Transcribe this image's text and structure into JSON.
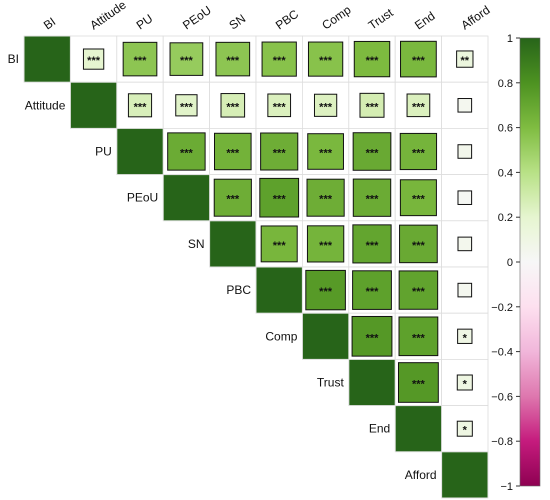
{
  "chart_data": {
    "type": "heatmap",
    "variables": [
      "BI",
      "Attitude",
      "PU",
      "PEoU",
      "SN",
      "PBC",
      "Comp",
      "Trust",
      "End",
      "Afford"
    ],
    "layout": "upper-triangle",
    "method": "square",
    "matrix": [
      [
        1.0,
        0.2,
        0.55,
        0.52,
        0.55,
        0.57,
        0.57,
        0.61,
        0.62,
        0.13
      ],
      [
        0.2,
        1.0,
        0.26,
        0.22,
        0.27,
        0.25,
        0.24,
        0.28,
        0.25,
        0.04
      ],
      [
        0.55,
        0.26,
        1.0,
        0.68,
        0.65,
        0.67,
        0.62,
        0.69,
        0.64,
        0.06
      ],
      [
        0.52,
        0.22,
        0.68,
        1.0,
        0.67,
        0.73,
        0.67,
        0.68,
        0.63,
        0.02
      ],
      [
        0.55,
        0.27,
        0.65,
        0.67,
        1.0,
        0.63,
        0.64,
        0.71,
        0.69,
        0.05
      ],
      [
        0.57,
        0.25,
        0.67,
        0.73,
        0.63,
        1.0,
        0.76,
        0.73,
        0.72,
        0.04
      ],
      [
        0.57,
        0.24,
        0.62,
        0.67,
        0.64,
        0.76,
        1.0,
        0.77,
        0.73,
        0.1
      ],
      [
        0.61,
        0.28,
        0.69,
        0.68,
        0.71,
        0.73,
        0.77,
        1.0,
        0.77,
        0.11
      ],
      [
        0.62,
        0.25,
        0.64,
        0.63,
        0.69,
        0.72,
        0.73,
        0.77,
        1.0,
        0.11
      ],
      [
        0.13,
        0.04,
        0.06,
        0.02,
        0.05,
        0.04,
        0.1,
        0.11,
        0.11,
        1.0
      ]
    ],
    "significance": [
      [
        "",
        "***",
        "***",
        "***",
        "***",
        "***",
        "***",
        "***",
        "***",
        "**"
      ],
      [
        "***",
        "",
        "***",
        "***",
        "***",
        "***",
        "***",
        "***",
        "***",
        ""
      ],
      [
        "***",
        "***",
        "",
        "***",
        "***",
        "***",
        "***",
        "***",
        "***",
        ""
      ],
      [
        "***",
        "***",
        "***",
        "",
        "***",
        "***",
        "***",
        "***",
        "***",
        ""
      ],
      [
        "***",
        "***",
        "***",
        "***",
        "",
        "***",
        "***",
        "***",
        "***",
        ""
      ],
      [
        "***",
        "***",
        "***",
        "***",
        "***",
        "",
        "***",
        "***",
        "***",
        ""
      ],
      [
        "***",
        "***",
        "***",
        "***",
        "***",
        "***",
        "",
        "***",
        "***",
        "*"
      ],
      [
        "***",
        "***",
        "***",
        "***",
        "***",
        "***",
        "***",
        "",
        "***",
        "*"
      ],
      [
        "***",
        "***",
        "***",
        "***",
        "***",
        "***",
        "***",
        "***",
        "",
        "*"
      ],
      [
        "**",
        "",
        "",
        "",
        "",
        "",
        "*",
        "*",
        "*",
        ""
      ]
    ],
    "colorbar": {
      "range": [
        -1,
        1
      ],
      "ticks": [
        1,
        0.8,
        0.6,
        0.4,
        0.2,
        0,
        -0.2,
        -0.4,
        -0.6,
        -0.8,
        -1
      ],
      "colors": [
        "#8e0152",
        "#c51b7d",
        "#de77ae",
        "#f1b6da",
        "#fde0ef",
        "#f7f7f7",
        "#e6f5d0",
        "#b8e186",
        "#7fbc41",
        "#4d9221",
        "#276419"
      ]
    }
  }
}
